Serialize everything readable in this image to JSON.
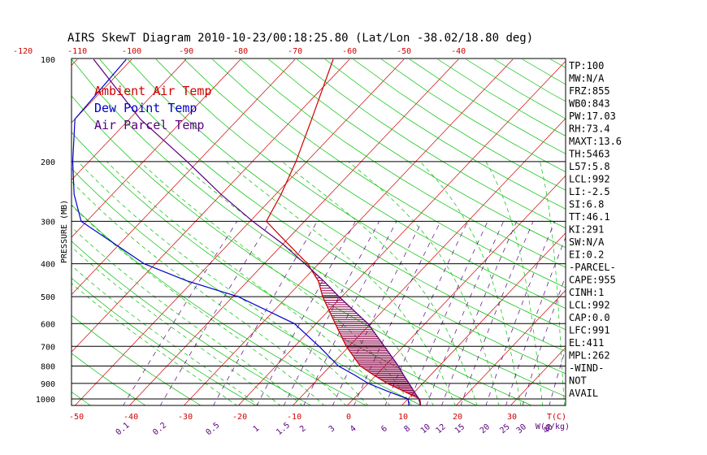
{
  "title": "AIRS SkewT Diagram 2010-10-23/00:18:25.80 (Lat/Lon -38.02/18.80 deg)",
  "colors": {
    "ambient": "#d00000",
    "dewpoint": "#0000d0",
    "parcel": "#5a0080",
    "isotherm": "#d00000",
    "dry_adiabat": "#00c000",
    "moist_adiabat": "#00c000",
    "mixing_ratio": "#5a0080",
    "hatch": "#8b0045"
  },
  "legend": [
    {
      "label": "Ambient Air Temp",
      "color": "#d00000"
    },
    {
      "label": "Dew Point Temp",
      "color": "#0000d0"
    },
    {
      "label": "Air Parcel Temp",
      "color": "#5a0080"
    }
  ],
  "stats": [
    "TP:100",
    "MW:N/A",
    "FRZ:855",
    "WB0:843",
    "PW:17.03",
    "RH:73.4",
    "MAXT:13.6",
    "TH:5463",
    "L57:5.8",
    "LCL:992",
    "LI:-2.5",
    "SI:6.8",
    "TT:46.1",
    "KI:291",
    "SW:N/A",
    "EI:0.2",
    "-PARCEL-",
    "CAPE:955",
    "CINH:1",
    "LCL:992",
    "CAP:0.0",
    "LFC:991",
    "EL:411",
    "MPL:262",
    "-WIND-",
    "NOT",
    "AVAIL"
  ],
  "chart_data": {
    "type": "line",
    "title": "AIRS SkewT Diagram 2010-10-23/00:18:25.80 (Lat/Lon -38.02/18.80 deg)",
    "ylabel": "PRESSURE (MB)",
    "xlabel": "T(C)",
    "mixing_ratio_label": "W(g/kg)",
    "y_scale": "log",
    "ylim": [
      1050,
      100
    ],
    "pressure_ticks": [
      100,
      200,
      300,
      400,
      500,
      600,
      700,
      800,
      900,
      1000
    ],
    "bottom_temp_ticks": [
      -50,
      -40,
      -30,
      -20,
      -10,
      0,
      10,
      20,
      30
    ],
    "top_temp_ticks": [
      -120,
      -110,
      -100,
      -90,
      -80,
      -70,
      -60,
      -50,
      -40
    ],
    "mixing_ratio_ticks": [
      "0.1",
      "0.2",
      "0.5",
      "1",
      "1.5",
      "2",
      "3",
      "4",
      "6",
      "8",
      "10",
      "12",
      "15",
      "20",
      "25",
      "30",
      "40"
    ],
    "series": [
      {
        "name": "Ambient Air Temp",
        "points": [
          {
            "p": 1050,
            "t": 13.6
          },
          {
            "p": 1000,
            "t": 12.2
          },
          {
            "p": 950,
            "t": 8.0
          },
          {
            "p": 900,
            "t": 3.5
          },
          {
            "p": 850,
            "t": -0.5
          },
          {
            "p": 800,
            "t": -4.5
          },
          {
            "p": 700,
            "t": -10.5
          },
          {
            "p": 600,
            "t": -16.5
          },
          {
            "p": 500,
            "t": -23.5
          },
          {
            "p": 450,
            "t": -27.0
          },
          {
            "p": 400,
            "t": -32.0
          },
          {
            "p": 350,
            "t": -39.0
          },
          {
            "p": 300,
            "t": -47.0
          },
          {
            "p": 250,
            "t": -49.0
          },
          {
            "p": 200,
            "t": -52.0
          },
          {
            "p": 150,
            "t": -56.5
          },
          {
            "p": 100,
            "t": -63.0
          }
        ]
      },
      {
        "name": "Dew Point Temp",
        "points": [
          {
            "p": 1050,
            "t": 11.5
          },
          {
            "p": 1000,
            "t": 10.0
          },
          {
            "p": 950,
            "t": 5.0
          },
          {
            "p": 900,
            "t": 0.0
          },
          {
            "p": 850,
            "t": -4.0
          },
          {
            "p": 800,
            "t": -8.5
          },
          {
            "p": 700,
            "t": -15.5
          },
          {
            "p": 600,
            "t": -24.0
          },
          {
            "p": 500,
            "t": -39.0
          },
          {
            "p": 450,
            "t": -51.0
          },
          {
            "p": 400,
            "t": -62.0
          },
          {
            "p": 300,
            "t": -81.0
          },
          {
            "p": 250,
            "t": -87.0
          },
          {
            "p": 200,
            "t": -93.0
          },
          {
            "p": 150,
            "t": -100.0
          },
          {
            "p": 100,
            "t": -101.0
          }
        ]
      },
      {
        "name": "Air Parcel Temp",
        "points": [
          {
            "p": 1050,
            "t": 13.6
          },
          {
            "p": 1000,
            "t": 12.0
          },
          {
            "p": 950,
            "t": 9.8
          },
          {
            "p": 900,
            "t": 7.5
          },
          {
            "p": 850,
            "t": 5.0
          },
          {
            "p": 800,
            "t": 2.5
          },
          {
            "p": 700,
            "t": -3.5
          },
          {
            "p": 600,
            "t": -10.5
          },
          {
            "p": 500,
            "t": -20.5
          },
          {
            "p": 450,
            "t": -26.0
          },
          {
            "p": 411,
            "t": -31.0
          },
          {
            "p": 400,
            "t": -32.5
          },
          {
            "p": 350,
            "t": -40.0
          },
          {
            "p": 300,
            "t": -49.5
          },
          {
            "p": 250,
            "t": -60.0
          },
          {
            "p": 200,
            "t": -72.0
          },
          {
            "p": 150,
            "t": -88.0
          },
          {
            "p": 100,
            "t": -107.0
          }
        ]
      }
    ]
  }
}
